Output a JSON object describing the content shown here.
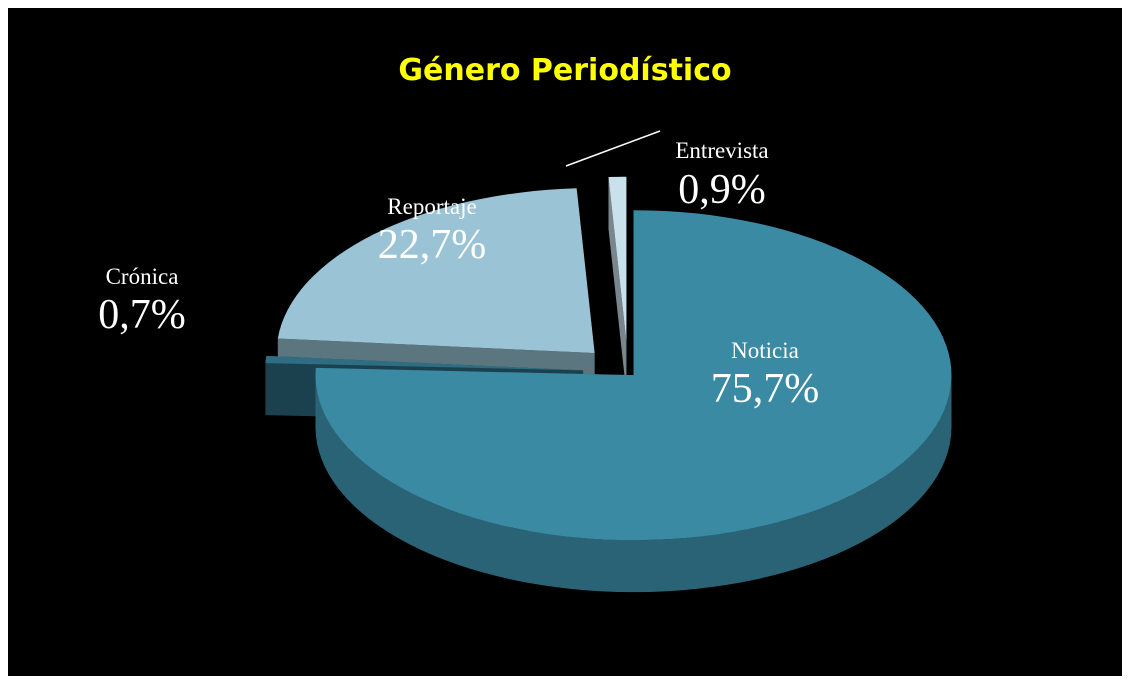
{
  "chart_data": {
    "type": "pie3d",
    "title": "Género Periodístico",
    "categories": [
      "Noticia",
      "Crónica",
      "Reportaje",
      "Entrevista"
    ],
    "values": [
      75.7,
      0.7,
      22.7,
      0.9
    ],
    "value_labels": [
      "75,7%",
      "0,7%",
      "22,7%",
      "0,9%"
    ],
    "colors": [
      "#3a8aa3",
      "#2f6d82",
      "#9ac4d5",
      "#c9e1ea"
    ]
  }
}
